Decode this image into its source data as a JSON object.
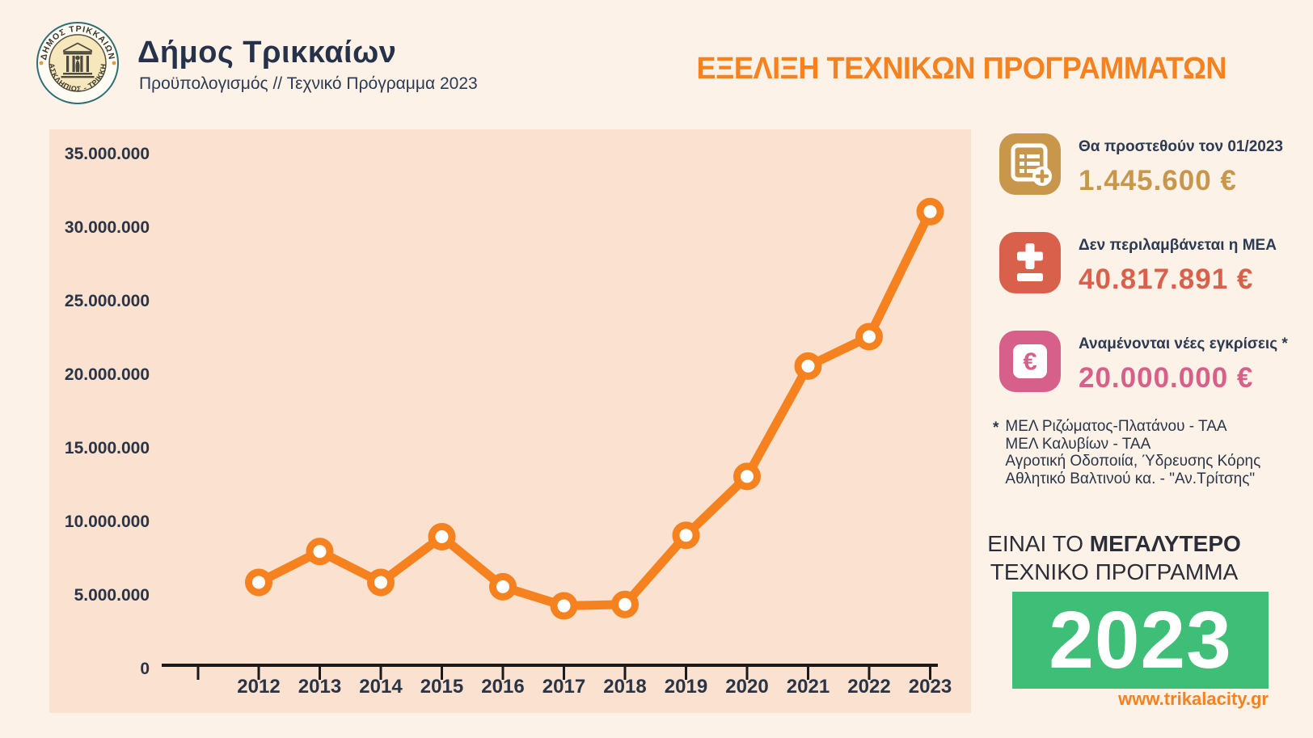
{
  "header": {
    "org_name": "Δήμος Τρικκαίων",
    "subtitle": "Προϋπολογισμός // Τεχνικό Πρόγραμμα 2023",
    "page_title": "ΕΞΕΛΙΞΗ ΤΕΧΝΙΚΩΝ ΠΡΟΓΡΑΜΜΑΤΩΝ",
    "title_color": "#f5821f",
    "logo": {
      "top_text": "ΔΗΜΟΣ ΤΡΙΚΚΑΙΩΝ",
      "bottom_text": "ΑΣΚΛΗΠΙΟΣ - ΤΡΙΚΚΗ"
    }
  },
  "chart_data": {
    "type": "line",
    "categories": [
      "2012",
      "2013",
      "2014",
      "2015",
      "2016",
      "2017",
      "2018",
      "2019",
      "2020",
      "2021",
      "2022",
      "2023"
    ],
    "values": [
      5800000,
      7900000,
      5800000,
      8900000,
      5500000,
      4200000,
      4300000,
      9000000,
      13000000,
      20500000,
      22500000,
      31000000
    ],
    "y_ticks": [
      {
        "label": "35.000.000",
        "value": 35000000
      },
      {
        "label": "30.000.000",
        "value": 30000000
      },
      {
        "label": "25.000.000",
        "value": 25000000
      },
      {
        "label": "20.000.000",
        "value": 20000000
      },
      {
        "label": "15.000.000",
        "value": 15000000
      },
      {
        "label": "10.000.000",
        "value": 10000000
      },
      {
        "label": "5.000.000",
        "value": 5000000
      },
      {
        "label": "0",
        "value": 0
      }
    ],
    "ylim": [
      0,
      35000000
    ],
    "grid": false,
    "legend": false,
    "xlabel": "",
    "ylabel": "",
    "line_color": "#f5821f",
    "marker_fill": "#ffffff",
    "axis_color": "#1a1a1a",
    "text_color": "#2a3447",
    "panel_bg": "#fbe2d0"
  },
  "stats": [
    {
      "icon": "document-plus-icon",
      "label": "Θα προστεθούν τον 01/2023",
      "value": "1.445.600 €",
      "color": "#c8974b"
    },
    {
      "icon": "plus-minus-icon",
      "label": "Δεν περιλαμβάνεται η ΜΕΑ",
      "value": "40.817.891 €",
      "color": "#d9614c"
    },
    {
      "icon": "euro-icon",
      "label": "Αναμένονται νέες εγκρίσεις *",
      "value": "20.000.000 €",
      "color": "#d7608a"
    }
  ],
  "footnote": {
    "marker": "*",
    "lines": [
      "ΜΕΛ Ριζώματος-Πλατάνου - ΤΑΑ",
      "ΜΕΛ Καλυβίων - ΤΑΑ",
      "Αγροτική Οδοποιία, Ύδρευσης Κόρης",
      "Αθλητικό Βαλτινού κα. - \"Αν.Τρίτσης\""
    ]
  },
  "highlight": {
    "line1_regular": "ΕΙΝΑΙ ΤΟ",
    "line1_bold": "ΜΕΓΑΛΥΤΕΡΟ",
    "line2": "ΤΕΧΝΙΚΟ ΠΡΟΓΡΑΜΜΑ",
    "year": "2023",
    "year_bg": "#3fbe77",
    "website": "www.trikalacity.gr",
    "website_color": "#f5821f"
  }
}
